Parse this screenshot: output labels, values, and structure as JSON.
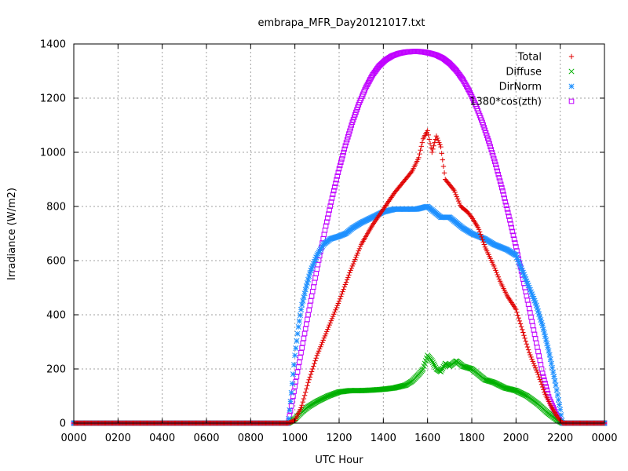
{
  "chart_data": {
    "type": "scatter",
    "title": "embrapa_MFR_Day20121017.txt",
    "xlabel": "UTC Hour",
    "ylabel": "Irradiance (W/m2)",
    "xlim": [
      0,
      24
    ],
    "ylim": [
      0,
      1400
    ],
    "x_tick_labels": [
      "0000",
      "0200",
      "0400",
      "0600",
      "0800",
      "1000",
      "1200",
      "1400",
      "1600",
      "1800",
      "2000",
      "2200",
      "0000"
    ],
    "y_ticks": [
      0,
      200,
      400,
      600,
      800,
      1000,
      1200,
      1400
    ],
    "grid": true,
    "legend_position": "top-right",
    "series": [
      {
        "name": "Total",
        "marker": "plus",
        "color": "#e00000",
        "x": [
          0,
          9.7,
          10.0,
          10.3,
          10.6,
          11.0,
          11.5,
          12.0,
          12.5,
          13.0,
          13.5,
          14.0,
          14.5,
          15.0,
          15.3,
          15.6,
          15.8,
          16.0,
          16.2,
          16.4,
          16.6,
          16.8,
          17.0,
          17.2,
          17.5,
          17.8,
          18.0,
          18.3,
          18.6,
          19.0,
          19.3,
          19.6,
          20.0,
          20.3,
          20.6,
          21.0,
          21.3,
          21.6,
          21.9,
          22.1,
          24
        ],
        "y": [
          0,
          0,
          10,
          60,
          150,
          250,
          350,
          450,
          560,
          660,
          730,
          790,
          850,
          900,
          930,
          980,
          1050,
          1080,
          1000,
          1060,
          1020,
          900,
          880,
          860,
          800,
          780,
          760,
          720,
          650,
          580,
          520,
          470,
          420,
          340,
          260,
          180,
          110,
          60,
          20,
          0,
          0
        ]
      },
      {
        "name": "Diffuse",
        "marker": "cross",
        "color": "#00b000",
        "x": [
          0,
          9.7,
          10.0,
          10.3,
          10.6,
          11.0,
          11.5,
          12.0,
          12.5,
          13.0,
          13.5,
          14.0,
          14.5,
          15.0,
          15.3,
          15.6,
          15.8,
          16.0,
          16.2,
          16.4,
          16.6,
          16.8,
          17.0,
          17.3,
          17.6,
          18.0,
          18.3,
          18.6,
          19.0,
          19.5,
          20.0,
          20.5,
          21.0,
          21.4,
          21.8,
          22.1,
          24
        ],
        "y": [
          0,
          0,
          15,
          40,
          60,
          80,
          100,
          115,
          120,
          120,
          122,
          125,
          130,
          140,
          155,
          180,
          200,
          250,
          230,
          200,
          190,
          220,
          210,
          230,
          210,
          200,
          180,
          160,
          150,
          130,
          120,
          100,
          70,
          40,
          15,
          0,
          0
        ]
      },
      {
        "name": "DirNorm",
        "marker": "star",
        "color": "#1e90ff",
        "x": [
          0,
          9.7,
          9.85,
          10.0,
          10.15,
          10.3,
          10.5,
          10.7,
          11.0,
          11.3,
          11.6,
          12.0,
          12.3,
          12.6,
          13.0,
          13.5,
          14.0,
          14.5,
          15.0,
          15.5,
          16.0,
          16.3,
          16.6,
          17.0,
          17.3,
          17.6,
          18.0,
          18.3,
          18.6,
          19.0,
          19.3,
          19.6,
          20.0,
          20.3,
          20.6,
          20.9,
          21.2,
          21.5,
          21.8,
          22.0,
          22.1,
          24
        ],
        "y": [
          0,
          0,
          120,
          250,
          350,
          430,
          500,
          560,
          620,
          660,
          680,
          690,
          700,
          720,
          740,
          760,
          780,
          790,
          790,
          790,
          800,
          780,
          760,
          760,
          740,
          720,
          700,
          690,
          680,
          660,
          650,
          640,
          620,
          560,
          500,
          440,
          360,
          260,
          140,
          50,
          0,
          0
        ]
      },
      {
        "name": "1380*cos(zth)",
        "marker": "square",
        "color": "#c000ff",
        "x": [
          0,
          9.7,
          9.9,
          10.2,
          10.5,
          10.8,
          11.1,
          11.4,
          11.7,
          12.0,
          12.3,
          12.6,
          12.9,
          13.2,
          13.5,
          13.8,
          14.1,
          14.4,
          14.7,
          15.0,
          15.3,
          15.6,
          15.85,
          16.1,
          16.4,
          16.7,
          17.0,
          17.3,
          17.6,
          17.9,
          18.2,
          18.5,
          18.8,
          19.1,
          19.4,
          19.7,
          20.0,
          20.3,
          20.6,
          20.9,
          21.2,
          21.5,
          21.8,
          22.0,
          22.1,
          24
        ],
        "y": [
          0,
          0,
          90,
          225,
          357,
          486,
          610,
          728,
          838,
          939,
          1030,
          1111,
          1180,
          1238,
          1284,
          1318,
          1341,
          1356,
          1365,
          1370,
          1372,
          1372,
          1370,
          1366,
          1359,
          1347,
          1328,
          1302,
          1268,
          1224,
          1170,
          1106,
          1032,
          949,
          857,
          757,
          651,
          539,
          423,
          304,
          184,
          91,
          36,
          8,
          0,
          0
        ]
      }
    ]
  }
}
